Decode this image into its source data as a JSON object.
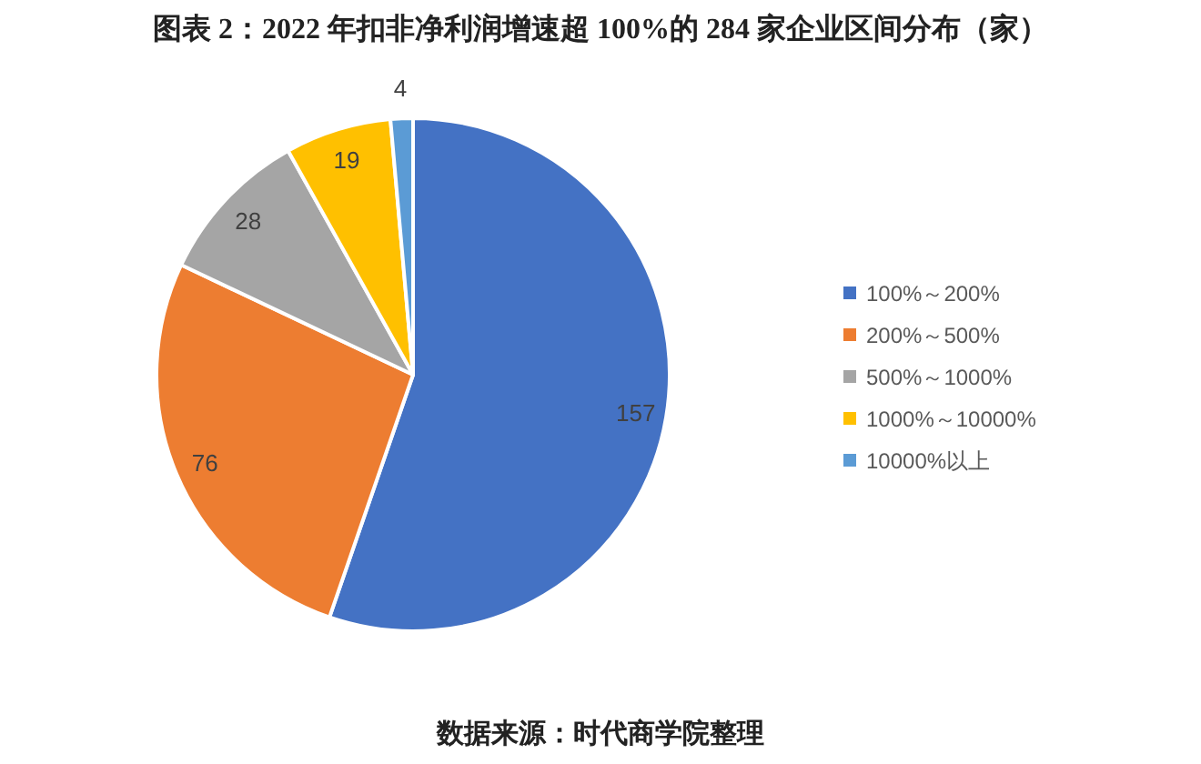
{
  "chart_data": {
    "type": "pie",
    "title": "图表 2：2022 年扣非净利润增速超 100%的 284 家企业区间分布（家）",
    "categories": [
      "100%～200%",
      "200%～500%",
      "500%～1000%",
      "1000%～10000%",
      "10000%以上"
    ],
    "values": [
      157,
      76,
      28,
      19,
      4
    ],
    "colors": [
      "#4472c4",
      "#ed7d31",
      "#a5a5a5",
      "#ffc000",
      "#5b9bd5"
    ],
    "data_labels": true,
    "legend": "right",
    "annotations": [
      "数据来源：时代商学院整理"
    ]
  }
}
